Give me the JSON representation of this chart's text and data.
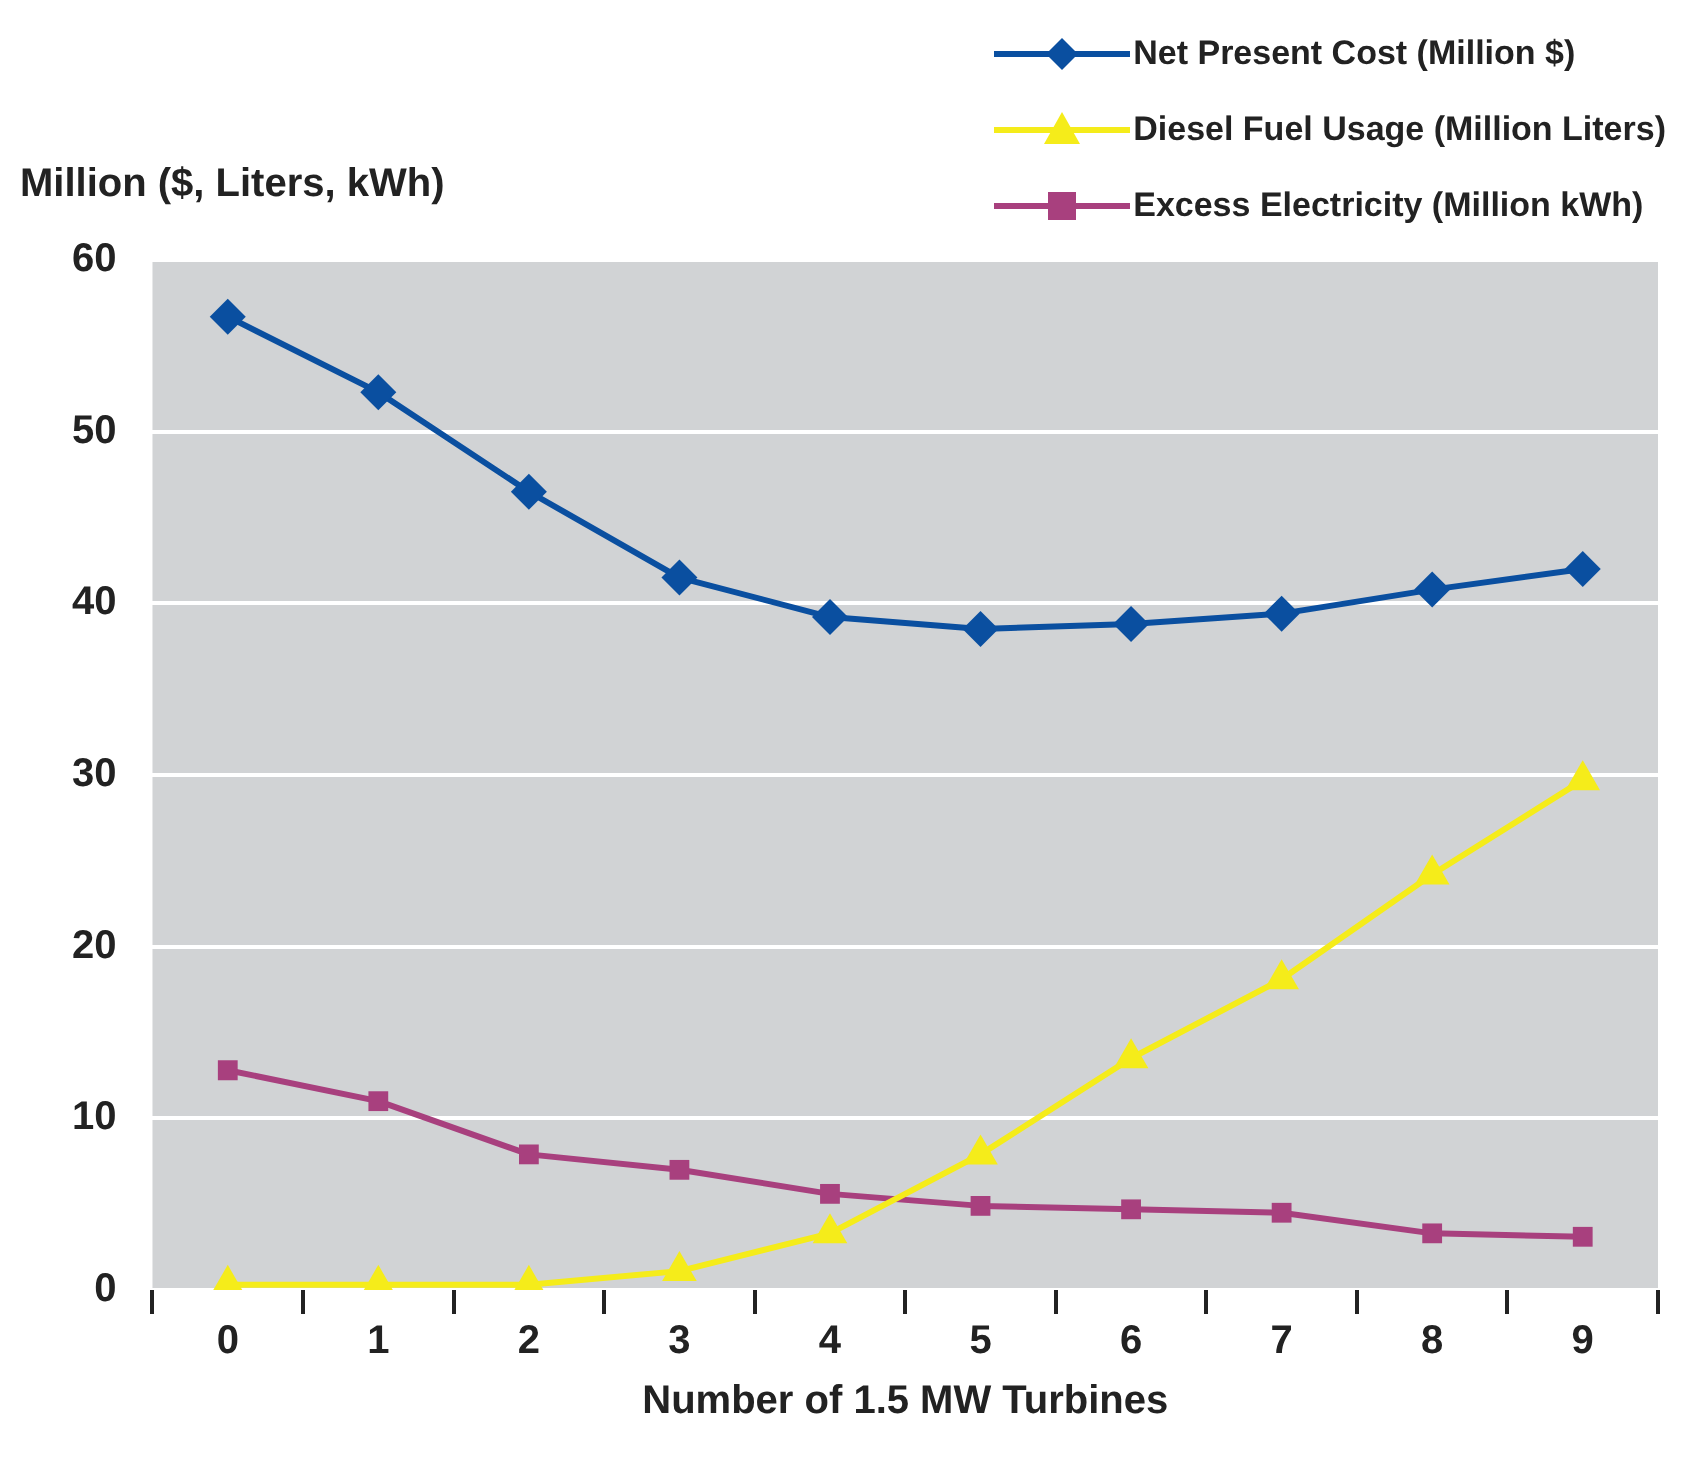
{
  "chart_data": {
    "type": "line",
    "xlabel": "Number of 1.5 MW Turbines",
    "ylabel": "Million ($, Liters, kWh)",
    "categories": [
      "0",
      "1",
      "2",
      "3",
      "4",
      "5",
      "6",
      "7",
      "8",
      "9"
    ],
    "series": [
      {
        "name": "Net Present Cost (Million $)",
        "color": "#0a4fa0",
        "marker": "diamond",
        "values": [
          56.7,
          52.3,
          46.5,
          41.5,
          39.2,
          38.5,
          38.8,
          39.4,
          40.8,
          42.0
        ]
      },
      {
        "name": "Diesel Fuel Usage (Million Liters)",
        "color": "#f5ec1a",
        "marker": "triangle",
        "values": [
          0.3,
          0.3,
          0.3,
          1.1,
          3.3,
          7.9,
          13.5,
          18.1,
          24.2,
          29.7
        ]
      },
      {
        "name": "Excess Electricity (Million kWh)",
        "color": "#a8407e",
        "marker": "square",
        "values": [
          12.8,
          11.0,
          7.9,
          7.0,
          5.6,
          4.9,
          4.7,
          4.5,
          3.3,
          3.1
        ]
      }
    ],
    "ylim": [
      0,
      60
    ],
    "yticks": [
      0,
      10,
      20,
      30,
      40,
      50,
      60
    ],
    "grid": "y",
    "legend": "top right",
    "line_style": "solid"
  }
}
